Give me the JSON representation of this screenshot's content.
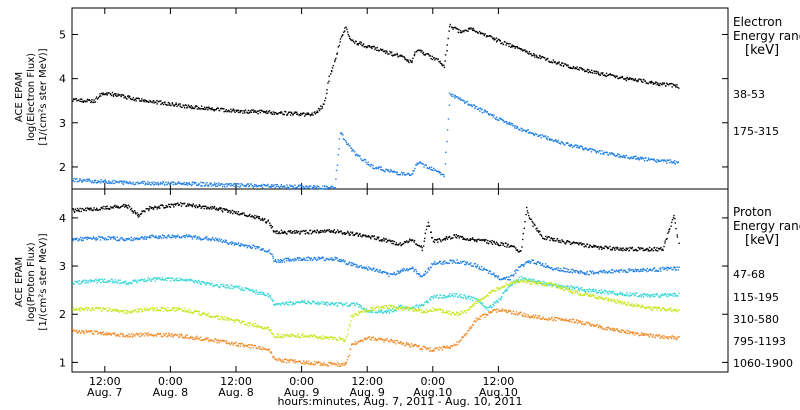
{
  "chart_data": [
    {
      "type": "line",
      "panel": "electron",
      "ylabel_lines": [
        "ACE EPAM",
        "log(Electron Flux)",
        "[1/(cm²s ster MeV)]"
      ],
      "legend_title_lines": [
        "Electron",
        "Energy range",
        "[keV]"
      ],
      "ylim": [
        1.5,
        5.6
      ],
      "yticks": [
        2,
        3,
        4,
        5
      ],
      "series": [
        {
          "name": "38-53",
          "color": "#000000",
          "points": [
            [
              0,
              3.52
            ],
            [
              4,
              3.48
            ],
            [
              5,
              3.62
            ],
            [
              6,
              3.68
            ],
            [
              12,
              3.52
            ],
            [
              18,
              3.42
            ],
            [
              22,
              3.35
            ],
            [
              30,
              3.26
            ],
            [
              38,
              3.22
            ],
            [
              44,
              3.18
            ],
            [
              46,
              3.4
            ],
            [
              47,
              4.05
            ],
            [
              48,
              4.4
            ],
            [
              49,
              4.9
            ],
            [
              50,
              5.15
            ],
            [
              51,
              4.85
            ],
            [
              56,
              4.65
            ],
            [
              60,
              4.5
            ],
            [
              62,
              4.35
            ],
            [
              63,
              4.65
            ],
            [
              67,
              4.4
            ],
            [
              68,
              4.25
            ],
            [
              69,
              5.2
            ],
            [
              71,
              5.05
            ],
            [
              73,
              5.12
            ],
            [
              78,
              4.85
            ],
            [
              84,
              4.55
            ],
            [
              90,
              4.3
            ],
            [
              96,
              4.12
            ],
            [
              102,
              3.98
            ],
            [
              108,
              3.87
            ],
            [
              111,
              3.82
            ]
          ]
        },
        {
          "name": "175-315",
          "color": "#1f7fe6",
          "points": [
            [
              0,
              1.7
            ],
            [
              10,
              1.64
            ],
            [
              20,
              1.62
            ],
            [
              30,
              1.58
            ],
            [
              40,
              1.55
            ],
            [
              48,
              1.52
            ],
            [
              49,
              2.8
            ],
            [
              50,
              2.55
            ],
            [
              52,
              2.25
            ],
            [
              55,
              2.0
            ],
            [
              58,
              1.9
            ],
            [
              62,
              1.8
            ],
            [
              63,
              2.1
            ],
            [
              67,
              1.9
            ],
            [
              68,
              1.78
            ],
            [
              69,
              3.65
            ],
            [
              72,
              3.45
            ],
            [
              76,
              3.2
            ],
            [
              82,
              2.85
            ],
            [
              88,
              2.6
            ],
            [
              94,
              2.4
            ],
            [
              100,
              2.25
            ],
            [
              106,
              2.15
            ],
            [
              111,
              2.1
            ]
          ]
        }
      ]
    },
    {
      "type": "line",
      "panel": "proton",
      "ylabel_lines": [
        "ACE EPAM",
        "log(Proton Flux)",
        "[1/(cm²s ster MeV)]"
      ],
      "legend_title_lines": [
        "Proton",
        "Energy range",
        "[keV]"
      ],
      "ylim": [
        0.8,
        4.6
      ],
      "yticks": [
        1,
        2,
        3,
        4
      ],
      "series": [
        {
          "name": "47-68",
          "color": "#000000",
          "points": [
            [
              0,
              4.15
            ],
            [
              6,
              4.2
            ],
            [
              10,
              4.25
            ],
            [
              12,
              4.05
            ],
            [
              14,
              4.2
            ],
            [
              20,
              4.28
            ],
            [
              26,
              4.2
            ],
            [
              30,
              4.1
            ],
            [
              34,
              4.0
            ],
            [
              36,
              3.9
            ],
            [
              37,
              3.7
            ],
            [
              42,
              3.7
            ],
            [
              48,
              3.72
            ],
            [
              54,
              3.62
            ],
            [
              58,
              3.5
            ],
            [
              60,
              3.45
            ],
            [
              62,
              3.55
            ],
            [
              64,
              3.35
            ],
            [
              65,
              3.9
            ],
            [
              66,
              3.5
            ],
            [
              70,
              3.62
            ],
            [
              76,
              3.5
            ],
            [
              80,
              3.42
            ],
            [
              82,
              3.3
            ],
            [
              83,
              4.2
            ],
            [
              84,
              3.9
            ],
            [
              86,
              3.6
            ],
            [
              90,
              3.5
            ],
            [
              96,
              3.38
            ],
            [
              102,
              3.35
            ],
            [
              108,
              3.35
            ],
            [
              110,
              4.05
            ],
            [
              111,
              3.4
            ]
          ]
        },
        {
          "name": "115-195",
          "color": "#1f7fe6",
          "points": [
            [
              0,
              3.55
            ],
            [
              6,
              3.58
            ],
            [
              10,
              3.55
            ],
            [
              14,
              3.6
            ],
            [
              20,
              3.62
            ],
            [
              26,
              3.55
            ],
            [
              30,
              3.45
            ],
            [
              34,
              3.38
            ],
            [
              36,
              3.3
            ],
            [
              37,
              3.1
            ],
            [
              42,
              3.15
            ],
            [
              48,
              3.15
            ],
            [
              52,
              3.0
            ],
            [
              56,
              2.9
            ],
            [
              58,
              2.8
            ],
            [
              60,
              2.9
            ],
            [
              62,
              2.95
            ],
            [
              64,
              2.78
            ],
            [
              66,
              3.05
            ],
            [
              70,
              3.1
            ],
            [
              74,
              3.0
            ],
            [
              78,
              2.75
            ],
            [
              80,
              2.75
            ],
            [
              82,
              3.0
            ],
            [
              84,
              3.1
            ],
            [
              88,
              2.95
            ],
            [
              94,
              2.85
            ],
            [
              100,
              2.9
            ],
            [
              106,
              2.92
            ],
            [
              111,
              2.95
            ]
          ]
        },
        {
          "name": "310-580",
          "color": "#36d6d6",
          "points": [
            [
              0,
              2.65
            ],
            [
              6,
              2.7
            ],
            [
              10,
              2.65
            ],
            [
              14,
              2.72
            ],
            [
              20,
              2.72
            ],
            [
              26,
              2.6
            ],
            [
              30,
              2.55
            ],
            [
              34,
              2.45
            ],
            [
              36,
              2.38
            ],
            [
              37,
              2.2
            ],
            [
              42,
              2.25
            ],
            [
              48,
              2.2
            ],
            [
              52,
              2.2
            ],
            [
              54,
              2.05
            ],
            [
              58,
              2.05
            ],
            [
              60,
              2.15
            ],
            [
              62,
              2.1
            ],
            [
              64,
              2.2
            ],
            [
              66,
              2.35
            ],
            [
              70,
              2.4
            ],
            [
              74,
              2.3
            ],
            [
              76,
              2.1
            ],
            [
              78,
              2.3
            ],
            [
              80,
              2.6
            ],
            [
              82,
              2.75
            ],
            [
              84,
              2.7
            ],
            [
              88,
              2.6
            ],
            [
              94,
              2.5
            ],
            [
              100,
              2.42
            ],
            [
              106,
              2.38
            ],
            [
              111,
              2.4
            ]
          ]
        },
        {
          "name": "795-1193",
          "color": "#c8e61e",
          "points": [
            [
              0,
              2.1
            ],
            [
              6,
              2.1
            ],
            [
              10,
              2.05
            ],
            [
              14,
              2.1
            ],
            [
              20,
              2.1
            ],
            [
              26,
              1.95
            ],
            [
              30,
              1.85
            ],
            [
              34,
              1.75
            ],
            [
              36,
              1.7
            ],
            [
              37,
              1.55
            ],
            [
              42,
              1.55
            ],
            [
              48,
              1.5
            ],
            [
              50,
              1.45
            ],
            [
              51,
              1.95
            ],
            [
              54,
              2.1
            ],
            [
              58,
              2.15
            ],
            [
              62,
              2.1
            ],
            [
              64,
              2.05
            ],
            [
              66,
              2.1
            ],
            [
              70,
              2.0
            ],
            [
              72,
              2.05
            ],
            [
              74,
              2.25
            ],
            [
              76,
              2.4
            ],
            [
              78,
              2.55
            ],
            [
              80,
              2.65
            ],
            [
              82,
              2.7
            ],
            [
              84,
              2.65
            ],
            [
              88,
              2.6
            ],
            [
              92,
              2.45
            ],
            [
              96,
              2.35
            ],
            [
              102,
              2.2
            ],
            [
              106,
              2.12
            ],
            [
              111,
              2.08
            ]
          ]
        },
        {
          "name": "1060-1900",
          "color": "#f08c28",
          "points": [
            [
              0,
              1.65
            ],
            [
              6,
              1.6
            ],
            [
              10,
              1.55
            ],
            [
              14,
              1.58
            ],
            [
              20,
              1.55
            ],
            [
              26,
              1.45
            ],
            [
              30,
              1.38
            ],
            [
              34,
              1.3
            ],
            [
              36,
              1.25
            ],
            [
              37,
              1.05
            ],
            [
              42,
              1.0
            ],
            [
              48,
              0.95
            ],
            [
              50,
              0.95
            ],
            [
              51,
              1.35
            ],
            [
              54,
              1.5
            ],
            [
              58,
              1.45
            ],
            [
              60,
              1.4
            ],
            [
              62,
              1.35
            ],
            [
              64,
              1.3
            ],
            [
              66,
              1.25
            ],
            [
              70,
              1.35
            ],
            [
              72,
              1.6
            ],
            [
              74,
              1.9
            ],
            [
              76,
              2.0
            ],
            [
              78,
              2.1
            ],
            [
              80,
              2.05
            ],
            [
              82,
              2.0
            ],
            [
              84,
              1.95
            ],
            [
              88,
              1.9
            ],
            [
              92,
              1.85
            ],
            [
              96,
              1.75
            ],
            [
              100,
              1.65
            ],
            [
              106,
              1.55
            ],
            [
              111,
              1.5
            ]
          ]
        }
      ]
    }
  ],
  "x_axis": {
    "hours_from": "Aug 7, 2011 06:00",
    "xlim": [
      0,
      120
    ],
    "ticks": [
      {
        "hour": 6,
        "time": "12:00",
        "date": "Aug. 7"
      },
      {
        "hour": 18,
        "time": "0:00",
        "date": "Aug. 8"
      },
      {
        "hour": 30,
        "time": "12:00",
        "date": "Aug. 8"
      },
      {
        "hour": 42,
        "time": "0:00",
        "date": "Aug. 9"
      },
      {
        "hour": 54,
        "time": "12:00",
        "date": "Aug. 9"
      },
      {
        "hour": 66,
        "time": "0:00",
        "date": "Aug.10"
      },
      {
        "hour": 78,
        "time": "12:00",
        "date": "Aug.10"
      }
    ],
    "label": "hours:minutes, Aug.  7, 2011 - Aug. 10, 2011"
  }
}
